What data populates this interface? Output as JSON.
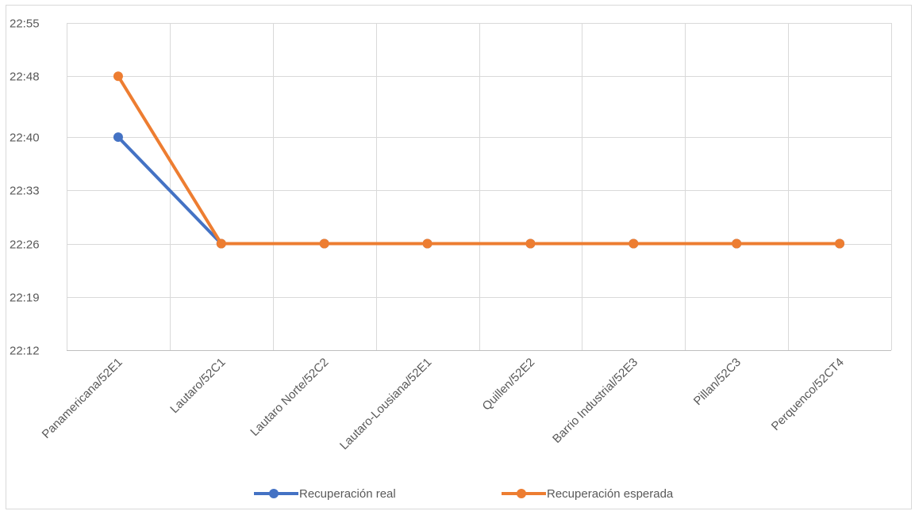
{
  "chart_data": {
    "type": "line",
    "title": "",
    "xlabel": "",
    "ylabel": "",
    "categories": [
      "Panamericana/52E1",
      "Lautaro/52C1",
      "Lautaro Norte/52C2",
      "Lautaro-Lousiana/52E1",
      "Quillen/52E2",
      "Barrio Industrial/52E3",
      "Pillan/52C3",
      "Perquenco/52CT4"
    ],
    "y_ticks": [
      "22:12",
      "22:19",
      "22:26",
      "22:33",
      "22:40",
      "22:48",
      "22:55"
    ],
    "ylim": [
      "22:12",
      "22:55"
    ],
    "series": [
      {
        "name": "Recuperación real",
        "color": "#4472C4",
        "values": [
          "22:40",
          "22:26",
          "22:26",
          "22:26",
          "22:26",
          "22:26",
          "22:26",
          "22:26"
        ]
      },
      {
        "name": "Recuperación esperada",
        "color": "#ED7D31",
        "values": [
          "22:48",
          "22:26",
          "22:26",
          "22:26",
          "22:26",
          "22:26",
          "22:26",
          "22:26"
        ]
      }
    ],
    "grid": true,
    "legend_position": "bottom"
  }
}
